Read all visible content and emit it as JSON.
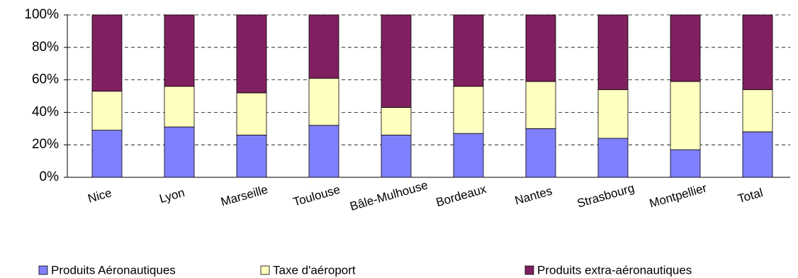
{
  "chart_data": {
    "type": "stacked_bar",
    "categories": [
      "Nice",
      "Lyon",
      "Marseille",
      "Toulouse",
      "Bâle-Mulhouse",
      "Bordeaux",
      "Nantes",
      "Strasbourg",
      "Montpellier",
      "Total"
    ],
    "series": [
      {
        "name": "Produits Aéronautiques",
        "color": "#8080ff",
        "values": [
          29,
          31,
          26,
          32,
          26,
          27,
          30,
          24,
          17,
          28
        ]
      },
      {
        "name": "Taxe d'aéroport",
        "color": "#ffffc0",
        "values": [
          24,
          25,
          26,
          29,
          17,
          29,
          29,
          30,
          42,
          26
        ]
      },
      {
        "name": "Produits extra-aéronautiques",
        "color": "#802060",
        "values": [
          47,
          44,
          48,
          39,
          57,
          44,
          41,
          46,
          41,
          46
        ]
      }
    ],
    "ylim": [
      0,
      100
    ],
    "yticks": [
      {
        "value": 0,
        "label": "0%"
      },
      {
        "value": 20,
        "label": "20%"
      },
      {
        "value": 40,
        "label": "40%"
      },
      {
        "value": 60,
        "label": "60%"
      },
      {
        "value": 80,
        "label": "80%"
      },
      {
        "value": 100,
        "label": "100%"
      }
    ],
    "grid": true,
    "legend": "bottom"
  }
}
